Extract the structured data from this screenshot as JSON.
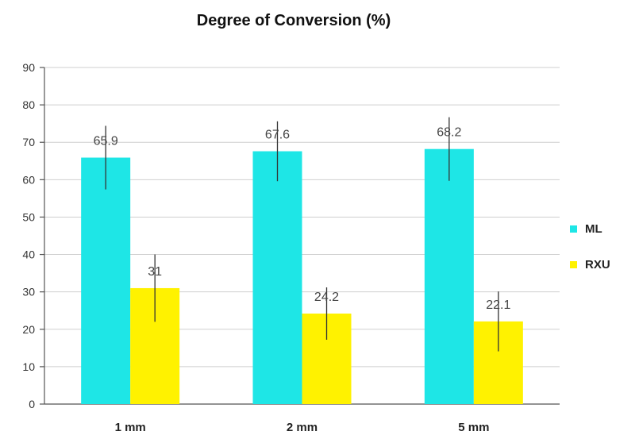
{
  "chart_data": {
    "type": "bar",
    "title": "Degree of Conversion (%)",
    "xlabel": "",
    "ylabel": "",
    "categories": [
      "1 mm",
      "2 mm",
      "5 mm"
    ],
    "series": [
      {
        "name": "ML",
        "color": "#1EE6E6",
        "values": [
          65.9,
          67.6,
          68.2
        ],
        "labels": [
          "65.9",
          "67.6",
          "68.2"
        ],
        "error": [
          8.5,
          8.0,
          8.5
        ]
      },
      {
        "name": "RXU",
        "color": "#FFF200",
        "values": [
          31,
          24.2,
          22.1
        ],
        "labels": [
          "31",
          "24.2",
          "22.1"
        ],
        "error": [
          9.0,
          7.0,
          8.0
        ]
      }
    ],
    "ylim": [
      0,
      90
    ],
    "yticks": [
      "0",
      "10",
      "20",
      "30",
      "40",
      "50",
      "60",
      "70",
      "80",
      "90"
    ],
    "grid": true,
    "legend_position": "right"
  }
}
